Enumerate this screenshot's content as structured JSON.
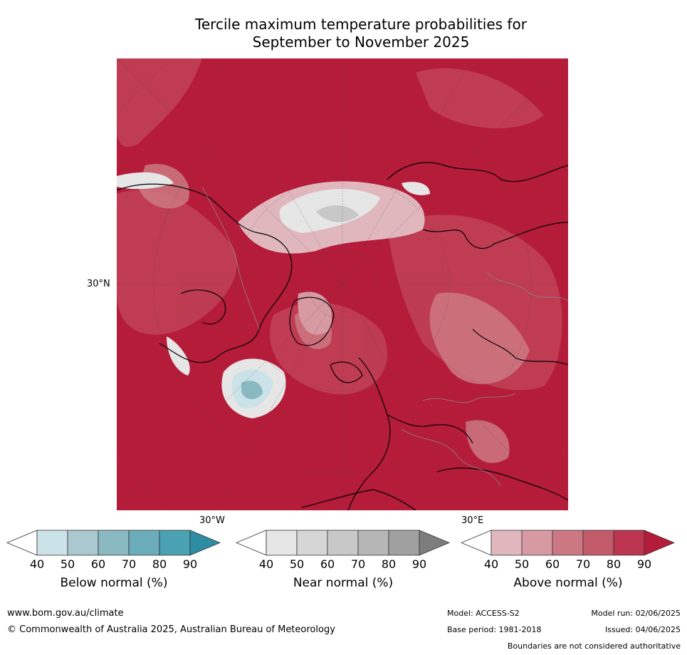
{
  "title_line1": "Tercile maximum temperature probabilities for",
  "title_line2": "September to November 2025",
  "map": {
    "lat_label": "30°N",
    "lon_label_west": "30°W",
    "lon_label_east": "30°E",
    "dominant_color": "#b51c3a"
  },
  "colorbars": [
    {
      "label": "Below normal (%)",
      "ticks": [
        "40",
        "50",
        "60",
        "70",
        "80",
        "90"
      ],
      "colors": [
        "#ffffff",
        "#cbe3e8",
        "#a9c8cf",
        "#8ab9c2",
        "#6cadbb",
        "#4aa1b2",
        "#2e8da3"
      ]
    },
    {
      "label": "Near normal (%)",
      "ticks": [
        "40",
        "50",
        "60",
        "70",
        "80",
        "90"
      ],
      "colors": [
        "#ffffff",
        "#e6e6e6",
        "#d6d6d6",
        "#c8c8c8",
        "#b6b6b6",
        "#a0a0a0",
        "#7d7d7d"
      ]
    },
    {
      "label": "Above normal (%)",
      "ticks": [
        "40",
        "50",
        "60",
        "70",
        "80",
        "90"
      ],
      "colors": [
        "#ffffff",
        "#e1b7be",
        "#d79aa3",
        "#cc7883",
        "#c35a6a",
        "#bb3550",
        "#b51c3a"
      ]
    }
  ],
  "footer": {
    "website": "www.bom.gov.au/climate",
    "copyright": "© Commonwealth of Australia 2025, Australian Bureau of Meteorology",
    "model": "Model: ACCESS-S2",
    "model_run": "Model run: 02/06/2025",
    "base_period": "Base period: 1981-2018",
    "issued": "Issued: 04/06/2025",
    "disclaimer": "Boundaries are not considered authoritative"
  }
}
